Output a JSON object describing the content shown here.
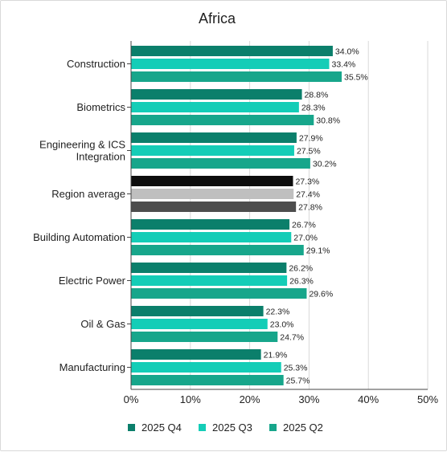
{
  "chart_data": {
    "type": "bar",
    "orientation": "horizontal",
    "title": "Africa",
    "xlabel": "",
    "ylabel": "",
    "xlim": [
      0,
      50
    ],
    "x_ticks": [
      "0%",
      "10%",
      "20%",
      "30%",
      "40%",
      "50%"
    ],
    "grid": "vertical",
    "legend_position": "bottom",
    "categories": [
      [
        "Construction"
      ],
      [
        "Biometrics"
      ],
      [
        "Engineering & ICS",
        "Integration"
      ],
      [
        "Region average"
      ],
      [
        "Building Automation"
      ],
      [
        "Electric Power"
      ],
      [
        "Oil & Gas"
      ],
      [
        "Manufacturing"
      ]
    ],
    "series": [
      {
        "name": "2025 Q4",
        "color": "#0b7f6b",
        "values": [
          34.0,
          28.8,
          27.9,
          27.3,
          26.7,
          26.2,
          22.3,
          21.9
        ],
        "labels": [
          "34.0%",
          "28.8%",
          "27.9%",
          "27.3%",
          "26.7%",
          "26.2%",
          "22.3%",
          "21.9%"
        ]
      },
      {
        "name": "2025 Q3",
        "color": "#14cdb7",
        "values": [
          33.4,
          28.3,
          27.5,
          27.4,
          27.0,
          26.3,
          23.0,
          25.3
        ],
        "labels": [
          "33.4%",
          "28.3%",
          "27.5%",
          "27.4%",
          "27.0%",
          "26.3%",
          "23.0%",
          "25.3%"
        ]
      },
      {
        "name": "2025 Q2",
        "color": "#17a68b",
        "values": [
          35.5,
          30.8,
          30.2,
          27.8,
          29.1,
          29.6,
          24.7,
          25.7
        ],
        "labels": [
          "35.5%",
          "30.8%",
          "30.2%",
          "27.8%",
          "29.1%",
          "29.6%",
          "24.7%",
          "25.7%"
        ]
      }
    ],
    "highlight_category": {
      "name": "Region average",
      "colors": [
        "#0d0d0d",
        "#bfbfbf",
        "#4d4d4d"
      ]
    }
  }
}
